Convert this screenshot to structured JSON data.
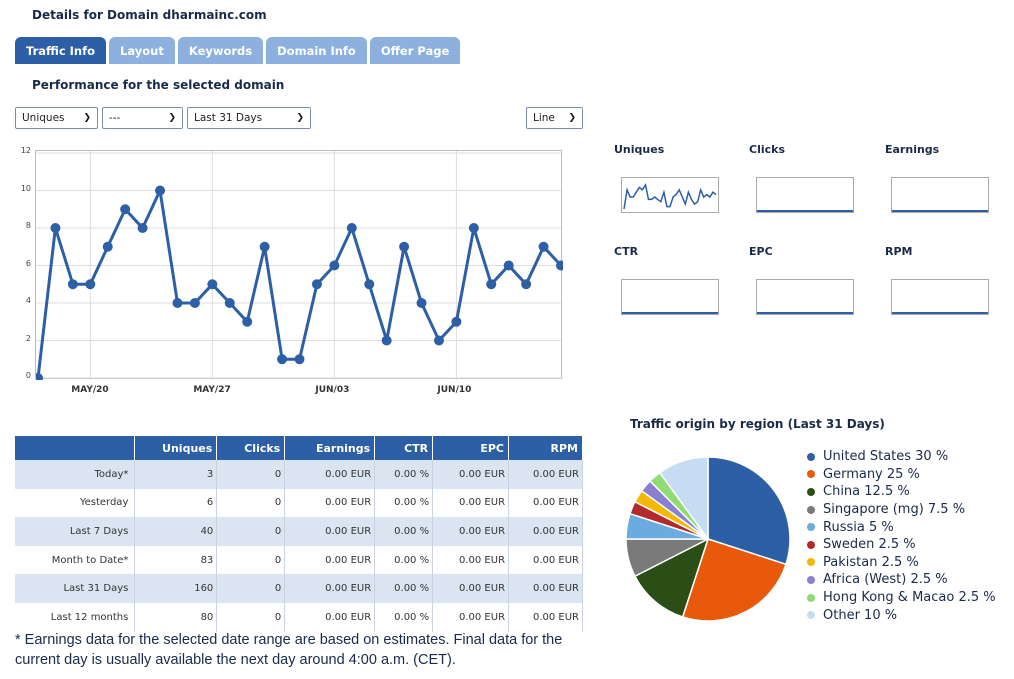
{
  "header": {
    "title": "Details for Domain dharmainc.com"
  },
  "tabs": [
    {
      "label": "Traffic Info",
      "active": true
    },
    {
      "label": "Layout"
    },
    {
      "label": "Keywords"
    },
    {
      "label": "Domain Info"
    },
    {
      "label": "Offer Page"
    }
  ],
  "performance": {
    "title": "Performance for the selected domain",
    "metric_select": "Uniques",
    "second_select": "---",
    "range_select": "Last 31 Days",
    "chart_type_select": "Line"
  },
  "chart_data": {
    "type": "line",
    "title": "",
    "xlabel": "",
    "ylabel": "",
    "ylim": [
      0,
      12
    ],
    "yticks": [
      0,
      2,
      4,
      6,
      8,
      10,
      12
    ],
    "xtick_labels": [
      "MAY/20",
      "MAY/27",
      "JUN/03",
      "JUN/10"
    ],
    "grid": true,
    "series": [
      {
        "color": "#2d5fa6",
        "values": [
          0,
          8,
          5,
          5,
          7,
          9,
          8,
          10,
          4,
          4,
          5,
          4,
          3,
          7,
          1,
          1,
          5,
          6,
          8,
          5,
          2,
          7,
          4,
          2,
          3,
          8,
          5,
          6,
          5,
          7,
          6
        ]
      }
    ]
  },
  "mini_charts": {
    "labels": [
      "Uniques",
      "Clicks",
      "Earnings",
      "CTR",
      "EPC",
      "RPM"
    ]
  },
  "stats_table": {
    "columns": [
      "Uniques",
      "Clicks",
      "Earnings",
      "CTR",
      "EPC",
      "RPM"
    ],
    "rows": [
      {
        "label": "Today*",
        "cells": [
          "3",
          "0",
          "0.00 EUR",
          "0.00 %",
          "0.00 EUR",
          "0.00 EUR"
        ]
      },
      {
        "label": "Yesterday",
        "cells": [
          "6",
          "0",
          "0.00 EUR",
          "0.00 %",
          "0.00 EUR",
          "0.00 EUR"
        ]
      },
      {
        "label": "Last 7 Days",
        "cells": [
          "40",
          "0",
          "0.00 EUR",
          "0.00 %",
          "0.00 EUR",
          "0.00 EUR"
        ]
      },
      {
        "label": "Month to Date*",
        "cells": [
          "83",
          "0",
          "0.00 EUR",
          "0.00 %",
          "0.00 EUR",
          "0.00 EUR"
        ]
      },
      {
        "label": "Last 31 Days",
        "cells": [
          "160",
          "0",
          "0.00 EUR",
          "0.00 %",
          "0.00 EUR",
          "0.00 EUR"
        ]
      },
      {
        "label": "Last 12 months",
        "cells": [
          "80",
          "0",
          "0.00 EUR",
          "0.00 %",
          "0.00 EUR",
          "0.00 EUR"
        ]
      }
    ]
  },
  "note": "* Earnings data for the selected date range are based on estimates. Final data for the current day is usually available the next day around 4:00 a.m. (CET).",
  "pie": {
    "title": "Traffic origin by region (Last 31 Days)",
    "slices": [
      {
        "label": "United States 30 %",
        "value": 30,
        "color": "#2d5fa6"
      },
      {
        "label": "Germany 25 %",
        "value": 25,
        "color": "#e8590c"
      },
      {
        "label": "China 12.5 %",
        "value": 12.5,
        "color": "#2b4d16"
      },
      {
        "label": "Singapore (mg) 7.5 %",
        "value": 7.5,
        "color": "#7a7a7a"
      },
      {
        "label": "Russia 5 %",
        "value": 5,
        "color": "#6aabe0"
      },
      {
        "label": "Sweden 2.5 %",
        "value": 2.5,
        "color": "#b3292d"
      },
      {
        "label": "Pakistan 2.5 %",
        "value": 2.5,
        "color": "#f5b800"
      },
      {
        "label": "Africa (West) 2.5 %",
        "value": 2.5,
        "color": "#8b7fd1"
      },
      {
        "label": "Hong Kong & Macao 2.5 %",
        "value": 2.5,
        "color": "#8fdc72"
      },
      {
        "label": "Other 10 %",
        "value": 10,
        "color": "#c5dcf2"
      }
    ]
  }
}
